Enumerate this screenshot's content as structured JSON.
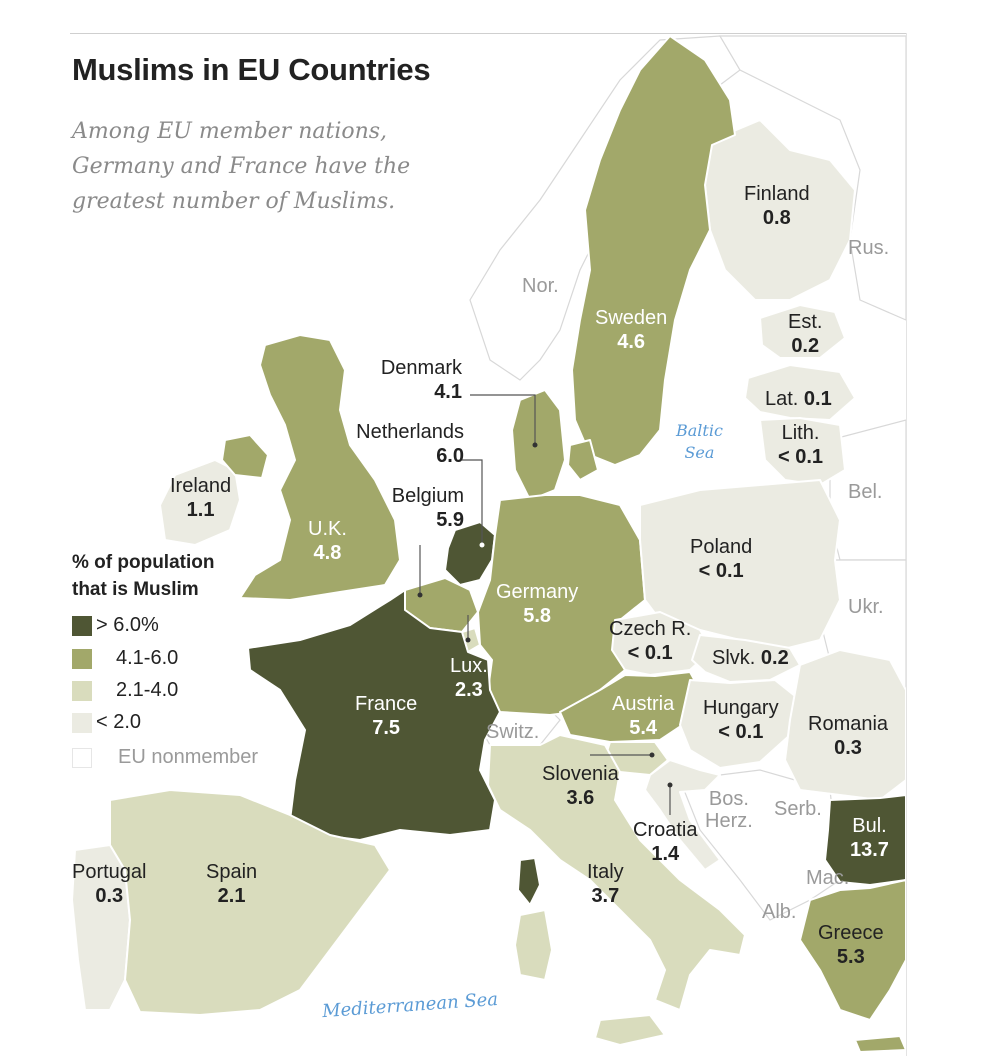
{
  "title": "Muslims in EU Countries",
  "subtitle": "Among EU member nations, Germany and France have the greatest number of Muslims.",
  "colors": {
    "over6": "#4f5634",
    "from4to6": "#a2a86a",
    "from2to4": "#d9dcbd",
    "under2": "#ebebe2",
    "nonmember": "#ffffff",
    "sea": "#5b9bd5",
    "border": "#ffffff"
  },
  "legend": {
    "title_line1": "% of population",
    "title_line2": "that is Muslim",
    "items": [
      {
        "label": "> 6.0%",
        "color": "#4f5634"
      },
      {
        "label": "4.1-6.0",
        "color": "#a2a86a"
      },
      {
        "label": "2.1-4.0",
        "color": "#d9dcbd"
      },
      {
        "label": "< 2.0",
        "color": "#ebebe2"
      },
      {
        "label": "EU nonmember",
        "color": "#ffffff"
      }
    ]
  },
  "countries": {
    "finland": {
      "name": "Finland",
      "value": "0.8"
    },
    "sweden": {
      "name": "Sweden",
      "value": "4.6"
    },
    "estonia": {
      "name": "Est.",
      "value": "0.2"
    },
    "latvia": {
      "name": "Lat.",
      "value": "0.1"
    },
    "lithuania": {
      "name": "Lith.",
      "value": "< 0.1"
    },
    "denmark": {
      "name": "Denmark",
      "value": "4.1"
    },
    "netherlands": {
      "name": "Netherlands",
      "value": "6.0"
    },
    "belgium": {
      "name": "Belgium",
      "value": "5.9"
    },
    "ireland": {
      "name": "Ireland",
      "value": "1.1"
    },
    "uk": {
      "name": "U.K.",
      "value": "4.8"
    },
    "germany": {
      "name": "Germany",
      "value": "5.8"
    },
    "poland": {
      "name": "Poland",
      "value": "< 0.1"
    },
    "czech": {
      "name": "Czech R.",
      "value": "< 0.1"
    },
    "slovakia": {
      "name": "Slvk.",
      "value": "0.2"
    },
    "luxembourg": {
      "name": "Lux.",
      "value": "2.3"
    },
    "france": {
      "name": "France",
      "value": "7.5"
    },
    "austria": {
      "name": "Austria",
      "value": "5.4"
    },
    "hungary": {
      "name": "Hungary",
      "value": "< 0.1"
    },
    "romania": {
      "name": "Romania",
      "value": "0.3"
    },
    "slovenia": {
      "name": "Slovenia",
      "value": "3.6"
    },
    "croatia": {
      "name": "Croatia",
      "value": "1.4"
    },
    "bulgaria": {
      "name": "Bul.",
      "value": "13.7"
    },
    "portugal": {
      "name": "Portugal",
      "value": "0.3"
    },
    "spain": {
      "name": "Spain",
      "value": "2.1"
    },
    "italy": {
      "name": "Italy",
      "value": "3.7"
    },
    "greece": {
      "name": "Greece",
      "value": "5.3"
    }
  },
  "nonmembers": {
    "norway": "Nor.",
    "russia": "Rus.",
    "belarus": "Bel.",
    "ukraine": "Ukr.",
    "switzerland": "Switz.",
    "bosnia_line1": "Bos.",
    "bosnia_line2": "Herz.",
    "serbia": "Serb.",
    "macedonia": "Mac.",
    "albania": "Alb."
  },
  "seas": {
    "baltic_line1": "Baltic",
    "baltic_line2": "Sea",
    "mediterranean": "Mediterranean Sea"
  }
}
